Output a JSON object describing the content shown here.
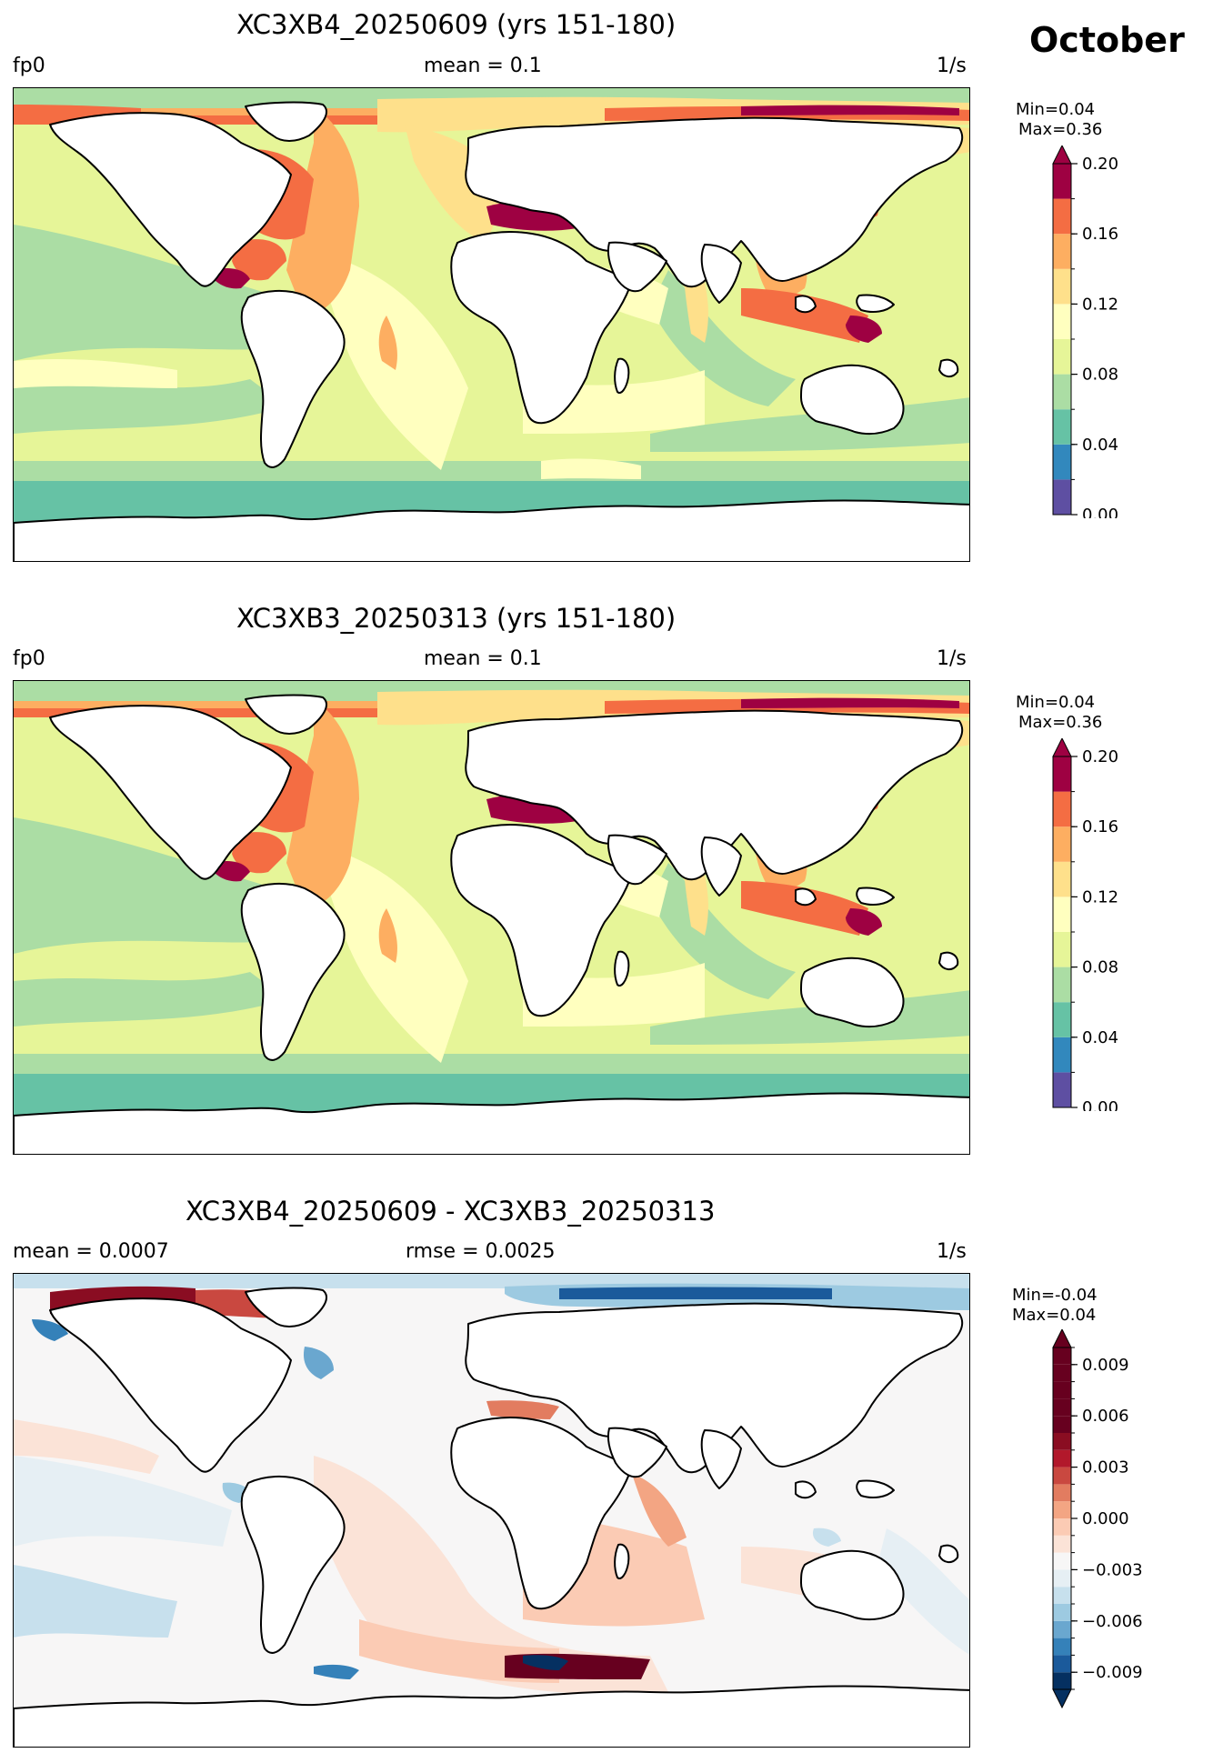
{
  "figure": {
    "month": "October"
  },
  "panels": [
    {
      "title": "XC3XB4_20250609 (yrs 151-180)",
      "left_label": "fp0",
      "center_label": "mean = 0.1",
      "units": "1/s",
      "cbar_min_label": "Min=0.04",
      "cbar_max_label": "Max=0.36"
    },
    {
      "title": "XC3XB3_20250313 (yrs 151-180)",
      "left_label": "fp0",
      "center_label": "mean = 0.1",
      "units": "1/s",
      "cbar_min_label": "Min=0.04",
      "cbar_max_label": "Max=0.36"
    },
    {
      "title": "XC3XB4_20250609 - XC3XB3_20250313",
      "left_label": "mean = 0.0007",
      "center_label": "rmse = 0.0025",
      "units": "1/s",
      "cbar_min_label": "Min=-0.04",
      "cbar_max_label": "Max=0.04"
    }
  ],
  "chart_data": [
    {
      "type": "heatmap",
      "title": "XC3XB4_20250609 (yrs 151-180)",
      "variable": "fp0",
      "mean": 0.1,
      "units": "1/s",
      "min": 0.04,
      "max": 0.36,
      "colorbar": {
        "levels": [
          0.0,
          0.02,
          0.04,
          0.06,
          0.08,
          0.1,
          0.12,
          0.14,
          0.16,
          0.18,
          0.2
        ],
        "tick_values": [
          0.0,
          0.04,
          0.08,
          0.12,
          0.16,
          0.2
        ],
        "tick_labels": [
          "0.00",
          "0.04",
          "0.08",
          "0.12",
          "0.16",
          "0.20"
        ],
        "colors": [
          "#5e4fa2",
          "#3288bd",
          "#66c2a5",
          "#abdda4",
          "#e6f598",
          "#ffffbf",
          "#fee08b",
          "#fdae61",
          "#f46d43",
          "#9e0142"
        ],
        "extend": "max"
      }
    },
    {
      "type": "heatmap",
      "title": "XC3XB3_20250313 (yrs 151-180)",
      "variable": "fp0",
      "mean": 0.1,
      "units": "1/s",
      "min": 0.04,
      "max": 0.36,
      "colorbar": {
        "levels": [
          0.0,
          0.02,
          0.04,
          0.06,
          0.08,
          0.1,
          0.12,
          0.14,
          0.16,
          0.18,
          0.2
        ],
        "tick_values": [
          0.0,
          0.04,
          0.08,
          0.12,
          0.16,
          0.2
        ],
        "tick_labels": [
          "0.00",
          "0.04",
          "0.08",
          "0.12",
          "0.16",
          "0.20"
        ],
        "colors": [
          "#5e4fa2",
          "#3288bd",
          "#66c2a5",
          "#abdda4",
          "#e6f598",
          "#ffffbf",
          "#fee08b",
          "#fdae61",
          "#f46d43",
          "#9e0142"
        ],
        "extend": "max"
      }
    },
    {
      "type": "heatmap",
      "title": "XC3XB4_20250609 - XC3XB3_20250313",
      "mean": 0.0007,
      "rmse": 0.0025,
      "units": "1/s",
      "min": -0.04,
      "max": 0.04,
      "colorbar": {
        "levels": [
          -0.01,
          -0.009,
          -0.008,
          -0.007,
          -0.006,
          -0.005,
          -0.004,
          -0.003,
          -0.002,
          -0.001,
          0.0,
          0.001,
          0.002,
          0.003,
          0.004,
          0.005,
          0.006,
          0.007,
          0.008,
          0.009,
          0.01
        ],
        "tick_values": [
          -0.009,
          -0.006,
          -0.003,
          0.0,
          0.003,
          0.006,
          0.009
        ],
        "tick_labels": [
          "−0.009",
          "−0.006",
          "−0.003",
          "0.000",
          "0.003",
          "0.006",
          "0.009"
        ],
        "colors": [
          "#053061",
          "#1b5a9b",
          "#3581b9",
          "#6aa7cf",
          "#9dcae1",
          "#c7e0ed",
          "#e6eff4",
          "#f7f6f6",
          "#fbe3d7",
          "#fbcbb4",
          "#f3a583",
          "#e27c60",
          "#c94840",
          "#b2182b",
          "#8a0d22",
          "#67001f",
          "#67001f",
          "#67001f",
          "#67001f",
          "#67001f"
        ],
        "extend": "both"
      }
    }
  ]
}
